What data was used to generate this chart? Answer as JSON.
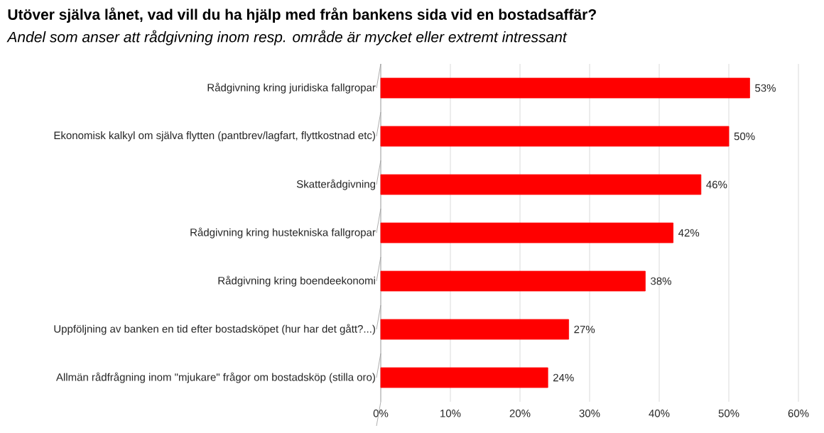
{
  "chart_data": {
    "type": "bar",
    "orientation": "horizontal",
    "title": "Utöver själva lånet, vad vill du ha hjälp med från bankens sida vid en bostadsaffär?",
    "subtitle": "Andel som anser att rådgivning inom resp. område är mycket eller extremt intressant",
    "categories": [
      "Rådgivning kring juridiska fallgropar",
      "Ekonomisk kalkyl om själva flytten (pantbrev/lagfart, flyttkostnad etc)",
      "Skatterådgivning",
      "Rådgivning kring hustekniska fallgropar",
      "Rådgivning kring boendeekonomi",
      "Uppföljning av banken en tid efter bostadsköpet (hur har det gått?...)",
      "Allmän rådfrågning inom \"mjukare\" frågor om bostadsköp (stilla oro)"
    ],
    "values": [
      53,
      50,
      46,
      42,
      38,
      27,
      24
    ],
    "value_labels": [
      "53%",
      "50%",
      "46%",
      "42%",
      "38%",
      "27%",
      "24%"
    ],
    "color": "#ff0000",
    "xlim": [
      0,
      60
    ],
    "xticks": [
      {
        "value": 0,
        "label": "0%"
      },
      {
        "value": 10,
        "label": "10%"
      },
      {
        "value": 20,
        "label": "20%"
      },
      {
        "value": 30,
        "label": "30%"
      },
      {
        "value": 40,
        "label": "40%"
      },
      {
        "value": 50,
        "label": "50%"
      },
      {
        "value": 60,
        "label": "60%"
      }
    ],
    "grid": "x"
  }
}
